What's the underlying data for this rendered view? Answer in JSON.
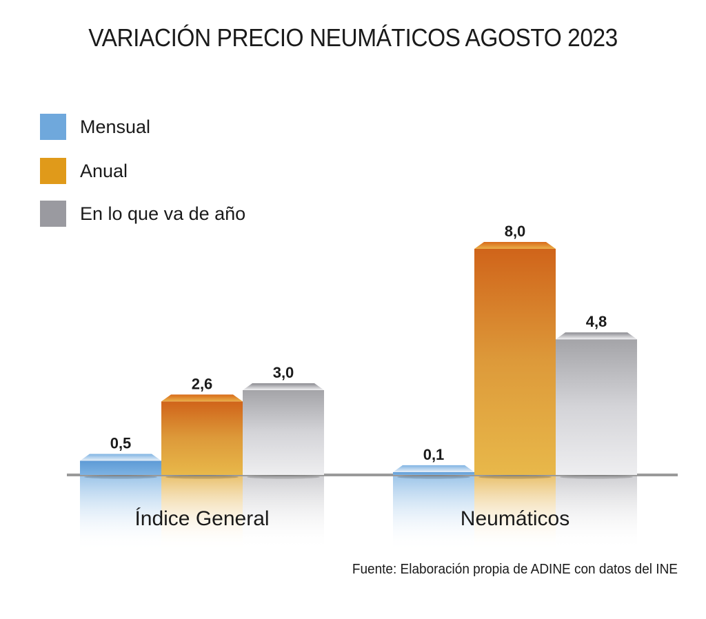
{
  "chart_data": {
    "type": "bar",
    "title": "VARIACIÓN PRECIO NEUMÁTICOS AGOSTO 2023",
    "categories": [
      "Índice General",
      "Neumáticos"
    ],
    "series": [
      {
        "name": "Mensual",
        "color": "#6fa8dc",
        "values": [
          0.5,
          0.1
        ],
        "labels": [
          "0,5",
          "0,1"
        ]
      },
      {
        "name": "Anual",
        "color": "#e09a1a",
        "values": [
          2.6,
          8.0
        ],
        "labels": [
          "2,6",
          "8,0"
        ]
      },
      {
        "name": "En lo que va de año",
        "color": "#9a9aa0",
        "values": [
          3.0,
          4.8
        ],
        "labels": [
          "3,0",
          "4,8"
        ]
      }
    ],
    "xlabel": "",
    "ylabel": "",
    "ylim": [
      0,
      8.0
    ],
    "grid": false,
    "legend_position": "top-left",
    "source": "Fuente: Elaboración propia de ADINE con datos del INE"
  }
}
